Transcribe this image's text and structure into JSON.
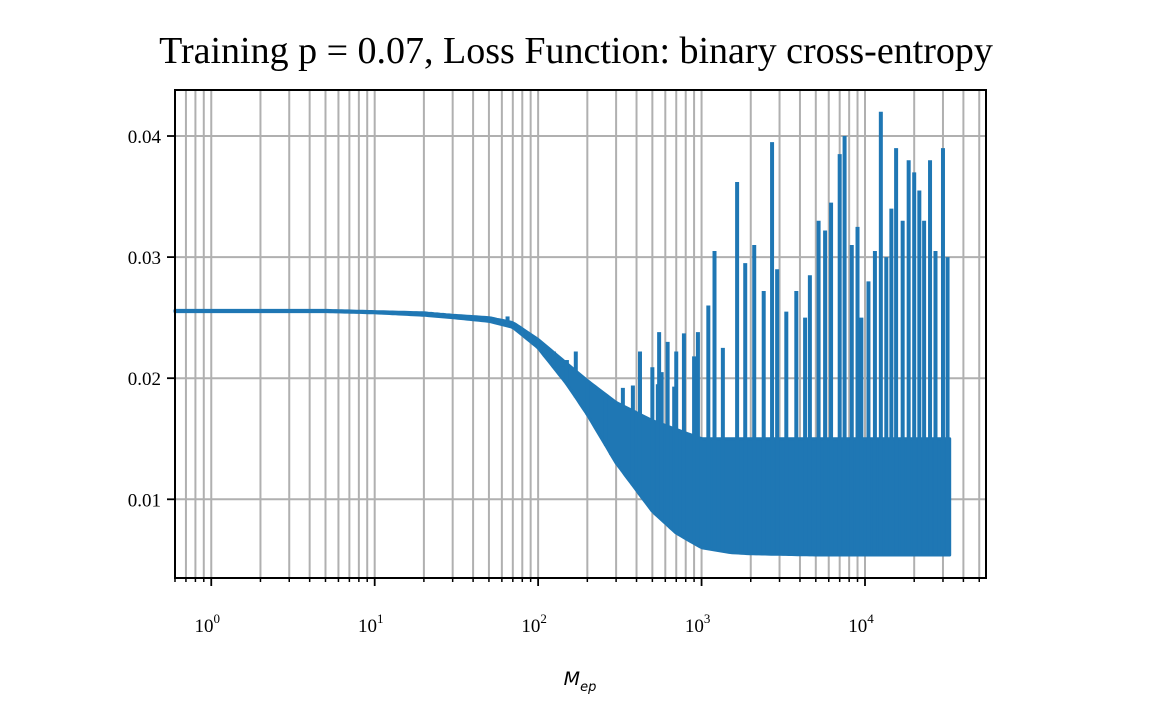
{
  "chart_data": {
    "type": "line",
    "title": "Training p = 0.07, Loss Function: binary cross-entropy",
    "xlabel": "M",
    "xlabel_subscript": "ep",
    "ylabel": "",
    "xscale": "log",
    "xlim": [
      0.6,
      55000
    ],
    "ylim": [
      0.0035,
      0.0438
    ],
    "grid": true,
    "grid_minor_x": true,
    "legend": false,
    "colors": {
      "line": "#1f77b4",
      "grid": "#b0b0b0",
      "axes": "#000000"
    },
    "x_ticks": [
      {
        "base": "10",
        "exp": "0",
        "value": 1
      },
      {
        "base": "10",
        "exp": "1",
        "value": 10
      },
      {
        "base": "10",
        "exp": "2",
        "value": 100
      },
      {
        "base": "10",
        "exp": "3",
        "value": 1000
      },
      {
        "base": "10",
        "exp": "4",
        "value": 10000
      }
    ],
    "y_ticks": [
      {
        "label": "0.01",
        "value": 0.01
      },
      {
        "label": "0.02",
        "value": 0.02
      },
      {
        "label": "0.03",
        "value": 0.03
      },
      {
        "label": "0.04",
        "value": 0.04
      }
    ],
    "series": [
      {
        "x_start": 1,
        "x_end": 33000,
        "upper_envelope": [
          [
            0.6,
            0.0256
          ],
          [
            1,
            0.0256
          ],
          [
            2,
            0.0256
          ],
          [
            5,
            0.0256
          ],
          [
            10,
            0.0255
          ],
          [
            20,
            0.0254
          ],
          [
            30,
            0.0252
          ],
          [
            50,
            0.025
          ],
          [
            70,
            0.0246
          ],
          [
            100,
            0.0232
          ],
          [
            150,
            0.0212
          ],
          [
            200,
            0.0198
          ],
          [
            300,
            0.018
          ],
          [
            500,
            0.0165
          ],
          [
            1000,
            0.015
          ],
          [
            2000,
            0.015
          ],
          [
            5000,
            0.015
          ],
          [
            10000,
            0.015
          ],
          [
            33000,
            0.015
          ]
        ],
        "lower_envelope": [
          [
            0.6,
            0.0255
          ],
          [
            1,
            0.0255
          ],
          [
            2,
            0.0255
          ],
          [
            5,
            0.0255
          ],
          [
            10,
            0.0254
          ],
          [
            20,
            0.0252
          ],
          [
            30,
            0.025
          ],
          [
            50,
            0.0247
          ],
          [
            70,
            0.0242
          ],
          [
            100,
            0.0225
          ],
          [
            150,
            0.0195
          ],
          [
            200,
            0.017
          ],
          [
            300,
            0.013
          ],
          [
            500,
            0.009
          ],
          [
            700,
            0.0072
          ],
          [
            1000,
            0.006
          ],
          [
            1500,
            0.0056
          ],
          [
            2000,
            0.0055
          ],
          [
            5000,
            0.0054
          ],
          [
            10000,
            0.0054
          ],
          [
            33000,
            0.0054
          ]
        ],
        "spikes": [
          [
            65,
            0.0251
          ],
          [
            80,
            0.0238
          ],
          [
            90,
            0.023
          ],
          [
            110,
            0.0225
          ],
          [
            125,
            0.0222
          ],
          [
            140,
            0.021
          ],
          [
            150,
            0.0215
          ],
          [
            170,
            0.0222
          ],
          [
            200,
            0.0198
          ],
          [
            260,
            0.0185
          ],
          [
            280,
            0.0183
          ],
          [
            330,
            0.0192
          ],
          [
            380,
            0.0194
          ],
          [
            420,
            0.0222
          ],
          [
            500,
            0.0209
          ],
          [
            540,
            0.0195
          ],
          [
            550,
            0.0238
          ],
          [
            570,
            0.0205
          ],
          [
            620,
            0.023
          ],
          [
            680,
            0.0193
          ],
          [
            700,
            0.0222
          ],
          [
            780,
            0.0237
          ],
          [
            900,
            0.0218
          ],
          [
            950,
            0.0238
          ],
          [
            1100,
            0.026
          ],
          [
            1200,
            0.0305
          ],
          [
            1350,
            0.0225
          ],
          [
            1650,
            0.0362
          ],
          [
            1850,
            0.0295
          ],
          [
            2100,
            0.031
          ],
          [
            2400,
            0.0272
          ],
          [
            2700,
            0.0395
          ],
          [
            2900,
            0.029
          ],
          [
            3300,
            0.0255
          ],
          [
            3800,
            0.0272
          ],
          [
            4300,
            0.025
          ],
          [
            4600,
            0.0285
          ],
          [
            5200,
            0.033
          ],
          [
            5700,
            0.0322
          ],
          [
            6200,
            0.0345
          ],
          [
            7000,
            0.0385
          ],
          [
            7500,
            0.04
          ],
          [
            8300,
            0.031
          ],
          [
            9000,
            0.0325
          ],
          [
            9500,
            0.025
          ],
          [
            10500,
            0.028
          ],
          [
            11500,
            0.0305
          ],
          [
            12500,
            0.042
          ],
          [
            13500,
            0.03
          ],
          [
            14500,
            0.034
          ],
          [
            15500,
            0.039
          ],
          [
            17000,
            0.033
          ],
          [
            18500,
            0.038
          ],
          [
            20000,
            0.037
          ],
          [
            21500,
            0.0355
          ],
          [
            23000,
            0.033
          ],
          [
            25000,
            0.038
          ],
          [
            27000,
            0.0305
          ],
          [
            30000,
            0.039
          ],
          [
            32000,
            0.03
          ]
        ]
      }
    ]
  }
}
